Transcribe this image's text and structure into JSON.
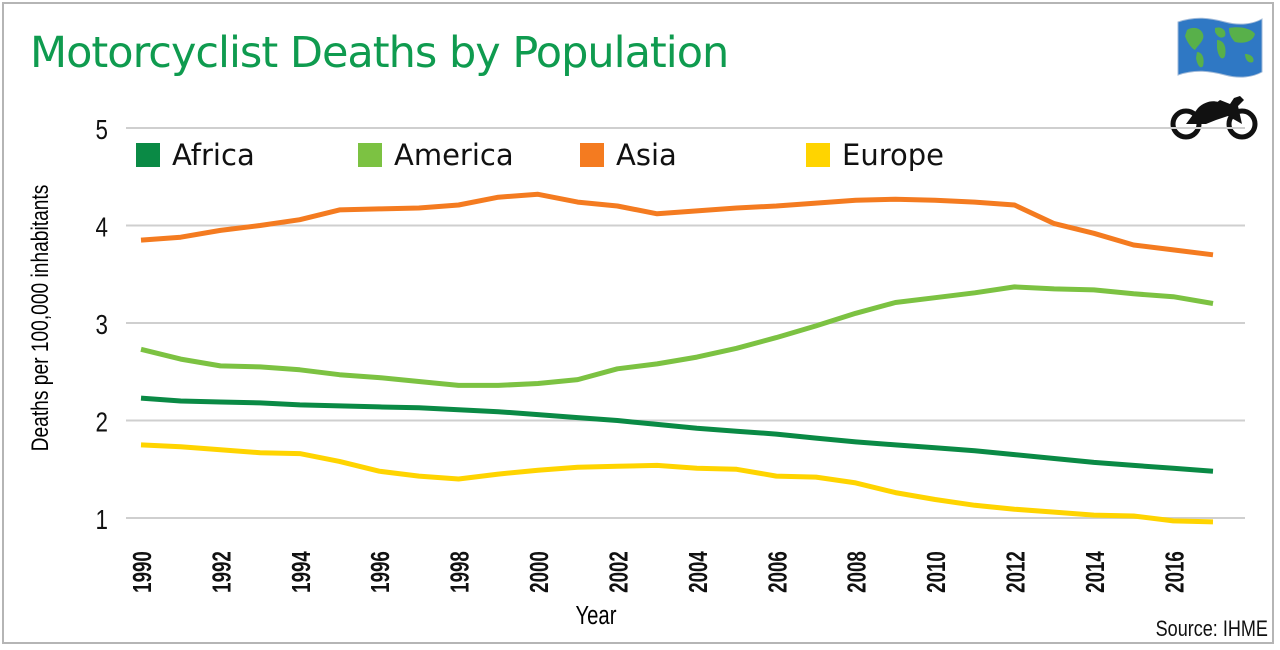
{
  "header": {
    "title": "Motorcyclist Deaths by Population",
    "source": "Source: IHME"
  },
  "icons": {
    "globe": "world-flag-icon",
    "motorcycle": "motorcycle-icon"
  },
  "chart_data": {
    "type": "line",
    "title": "Motorcyclist Deaths by Population",
    "xlabel": "Year",
    "ylabel": "Deaths per 100,000 inhabitants",
    "xlim": [
      1990,
      2017
    ],
    "ylim": [
      1,
      5
    ],
    "yticks": [
      1,
      2,
      3,
      4,
      5
    ],
    "xticks": [
      1990,
      1992,
      1994,
      1996,
      1998,
      2000,
      2002,
      2004,
      2006,
      2008,
      2010,
      2012,
      2014,
      2016
    ],
    "grid": "horizontal",
    "legend_position": "top",
    "x": [
      1990,
      1991,
      1992,
      1993,
      1994,
      1995,
      1996,
      1997,
      1998,
      1999,
      2000,
      2001,
      2002,
      2003,
      2004,
      2005,
      2006,
      2007,
      2008,
      2009,
      2010,
      2011,
      2012,
      2013,
      2014,
      2015,
      2016,
      2017
    ],
    "series": [
      {
        "name": "Africa",
        "color": "#0a8a45",
        "values": [
          2.23,
          2.2,
          2.19,
          2.18,
          2.16,
          2.15,
          2.14,
          2.13,
          2.11,
          2.09,
          2.06,
          2.03,
          2.0,
          1.96,
          1.92,
          1.89,
          1.86,
          1.82,
          1.78,
          1.75,
          1.72,
          1.69,
          1.65,
          1.61,
          1.57,
          1.54,
          1.51,
          1.48
        ]
      },
      {
        "name": "America",
        "color": "#7cc242",
        "values": [
          2.73,
          2.63,
          2.56,
          2.55,
          2.52,
          2.47,
          2.44,
          2.4,
          2.36,
          2.36,
          2.38,
          2.42,
          2.53,
          2.58,
          2.65,
          2.74,
          2.85,
          2.97,
          3.1,
          3.21,
          3.26,
          3.31,
          3.37,
          3.35,
          3.34,
          3.3,
          3.27,
          3.2
        ]
      },
      {
        "name": "Asia",
        "color": "#f47b20",
        "values": [
          3.85,
          3.88,
          3.95,
          4.0,
          4.06,
          4.16,
          4.17,
          4.18,
          4.21,
          4.29,
          4.32,
          4.24,
          4.2,
          4.12,
          4.15,
          4.18,
          4.2,
          4.23,
          4.26,
          4.27,
          4.26,
          4.24,
          4.21,
          4.02,
          3.92,
          3.8,
          3.75,
          3.7
        ]
      },
      {
        "name": "Europe",
        "color": "#ffd400",
        "values": [
          1.75,
          1.73,
          1.7,
          1.67,
          1.66,
          1.58,
          1.48,
          1.43,
          1.4,
          1.45,
          1.49,
          1.52,
          1.53,
          1.54,
          1.51,
          1.5,
          1.43,
          1.42,
          1.36,
          1.26,
          1.19,
          1.13,
          1.09,
          1.06,
          1.03,
          1.02,
          0.97,
          0.96
        ]
      }
    ]
  }
}
